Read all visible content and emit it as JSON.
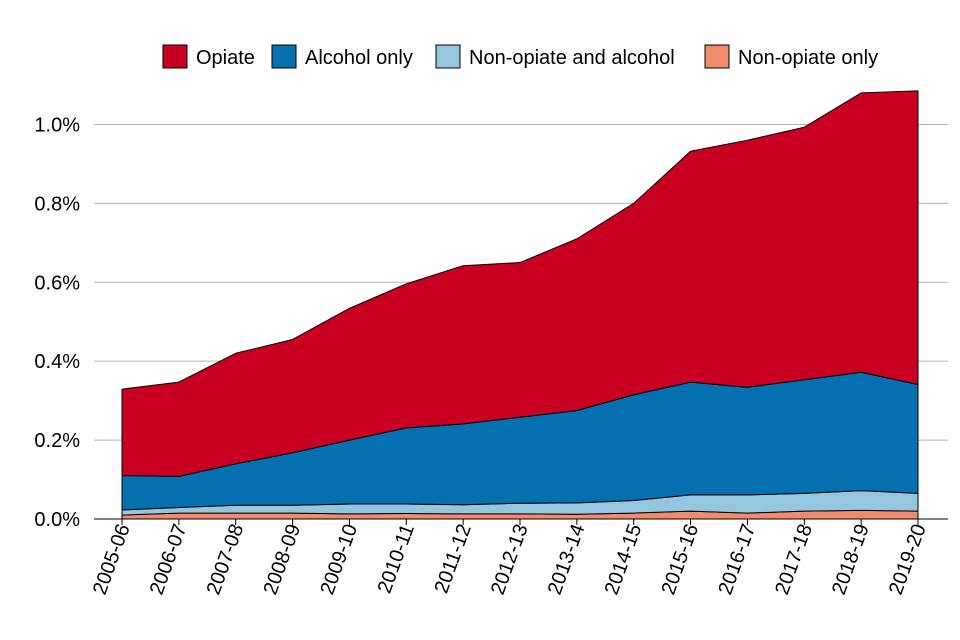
{
  "chart_data": {
    "type": "area",
    "stacked": true,
    "title": "",
    "xlabel": "",
    "ylabel": "",
    "ylim": [
      0,
      1.1
    ],
    "grid": true,
    "legend_position": "top",
    "categories": [
      "2005-06",
      "2006-07",
      "2007-08",
      "2008-09",
      "2009-10",
      "2010-11",
      "2011-12",
      "2012-13",
      "2013-14",
      "2014-15",
      "2015-16",
      "2016-17",
      "2017-18",
      "2018-19",
      "2019-20"
    ],
    "y_ticks": [
      {
        "value": 0.0,
        "label": "0.0%"
      },
      {
        "value": 0.2,
        "label": "0.2%"
      },
      {
        "value": 0.4,
        "label": "0.4%"
      },
      {
        "value": 0.6,
        "label": "0.6%"
      },
      {
        "value": 0.8,
        "label": "0.8%"
      },
      {
        "value": 1.0,
        "label": "1.0%"
      }
    ],
    "series": [
      {
        "name": "Non-opiate only",
        "color": "#f08b6b",
        "values": [
          0.01,
          0.015,
          0.015,
          0.015,
          0.013,
          0.014,
          0.013,
          0.013,
          0.012,
          0.015,
          0.02,
          0.015,
          0.02,
          0.022,
          0.02
        ]
      },
      {
        "name": "Non-opiate and alcohol",
        "color": "#95c6df",
        "values": [
          0.013,
          0.014,
          0.02,
          0.02,
          0.025,
          0.024,
          0.023,
          0.027,
          0.029,
          0.032,
          0.041,
          0.046,
          0.045,
          0.05,
          0.045
        ]
      },
      {
        "name": "Alcohol only",
        "color": "#0570b0",
        "values": [
          0.087,
          0.079,
          0.105,
          0.133,
          0.162,
          0.193,
          0.205,
          0.218,
          0.234,
          0.268,
          0.286,
          0.273,
          0.288,
          0.3,
          0.276
        ]
      },
      {
        "name": "Opiate",
        "color": "#c90021",
        "values": [
          0.219,
          0.239,
          0.28,
          0.287,
          0.334,
          0.365,
          0.401,
          0.392,
          0.435,
          0.485,
          0.585,
          0.626,
          0.64,
          0.708,
          0.744
        ]
      }
    ],
    "legend_order": [
      "Opiate",
      "Alcohol only",
      "Non-opiate and alcohol",
      "Non-opiate only"
    ]
  }
}
